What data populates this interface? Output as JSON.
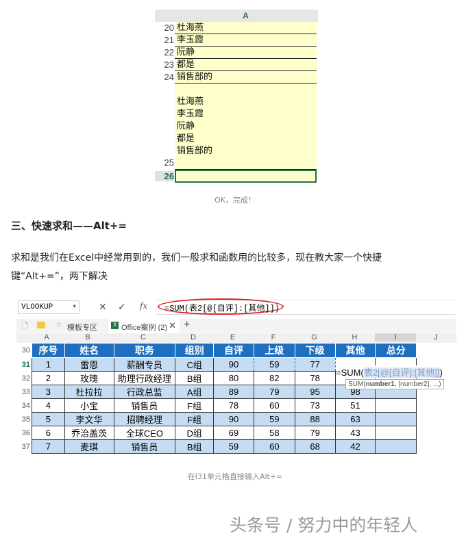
{
  "sheet1": {
    "column": "A",
    "rows": [
      {
        "n": "20",
        "v": "杜海燕"
      },
      {
        "n": "21",
        "v": "李玉霞"
      },
      {
        "n": "22",
        "v": "阮静"
      },
      {
        "n": "23",
        "v": "都是"
      },
      {
        "n": "24",
        "v": "销售部的"
      }
    ],
    "row25": {
      "n": "25",
      "lines": [
        "杜海燕",
        "李玉霞",
        "阮静",
        "都是",
        "销售部的"
      ]
    },
    "row26": {
      "n": "26"
    }
  },
  "caption1": "OK，完成！",
  "heading": "三、快速求和——Alt+=",
  "para": [
    "求和是我们在Excel中经常用到的，我们一般求和函数用的比较多，现在教大家一个快捷",
    "键“Alt+=”，两下解决"
  ],
  "sheet2": {
    "namebox": "VLOOKUP",
    "formula": "=SUM(表2[@[自评]:[其他]])",
    "tabs": [
      "模板专区",
      "Office案例 (2)"
    ],
    "columns": [
      "A",
      "B",
      "C",
      "D",
      "E",
      "F",
      "G",
      "H",
      "I",
      "J"
    ],
    "headers": [
      "序号",
      "姓名",
      "职务",
      "组别",
      "自评",
      "上级",
      "下级",
      "其他",
      "总分"
    ],
    "header_row": "30",
    "rows": [
      {
        "n": "31",
        "c": [
          "1",
          "雷恩",
          "薪酬专员",
          "C组",
          "90",
          "59",
          "77"
        ]
      },
      {
        "n": "32",
        "c": [
          "2",
          "玫瑰",
          "助理行政经理",
          "B组",
          "80",
          "82",
          "78",
          ""
        ]
      },
      {
        "n": "33",
        "c": [
          "3",
          "杜拉拉",
          "行政总监",
          "A组",
          "89",
          "79",
          "95",
          "98"
        ]
      },
      {
        "n": "34",
        "c": [
          "4",
          "小宝",
          "销售员",
          "F组",
          "78",
          "60",
          "73",
          "51"
        ]
      },
      {
        "n": "35",
        "c": [
          "5",
          "李文华",
          "招聘经理",
          "F组",
          "90",
          "59",
          "88",
          "63"
        ]
      },
      {
        "n": "36",
        "c": [
          "6",
          "乔治盖茨",
          "全球CEO",
          "D组",
          "69",
          "58",
          "79",
          "43"
        ]
      },
      {
        "n": "37",
        "c": [
          "7",
          "麦琪",
          "销售员",
          "B组",
          "59",
          "60",
          "68",
          "42"
        ]
      }
    ],
    "edit_text_prefix": "=SUM(",
    "edit_text_ref": "表2[@[自评]:[其他]]",
    "edit_text_suffix": ")",
    "tooltip_fn": "SUM(",
    "tooltip_bold": "number1",
    "tooltip_rest": ", [number2], ...)"
  },
  "caption2": "在I31单元格直接输入Alt+=",
  "watermark": "头条号 / 努力中的年轻人"
}
